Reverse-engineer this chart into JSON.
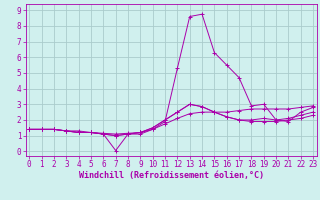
{
  "xlabel": "Windchill (Refroidissement éolien,°C)",
  "background_color": "#d0f0ee",
  "grid_color": "#aacccc",
  "line_color": "#aa00aa",
  "x_ticks": [
    0,
    1,
    2,
    3,
    4,
    5,
    6,
    7,
    8,
    9,
    10,
    11,
    12,
    13,
    14,
    15,
    16,
    17,
    18,
    19,
    20,
    21,
    22,
    23
  ],
  "y_ticks": [
    0,
    1,
    2,
    3,
    4,
    5,
    6,
    7,
    8,
    9
  ],
  "xlim": [
    -0.3,
    23.3
  ],
  "ylim": [
    -0.3,
    9.4
  ],
  "lines": [
    [
      1.4,
      1.4,
      1.4,
      1.3,
      1.3,
      1.2,
      1.15,
      1.1,
      1.15,
      1.2,
      1.4,
      1.75,
      2.1,
      2.4,
      2.5,
      2.5,
      2.5,
      2.6,
      2.7,
      2.7,
      2.7,
      2.7,
      2.8,
      2.9
    ],
    [
      1.4,
      1.4,
      1.4,
      1.3,
      1.2,
      1.2,
      1.1,
      1.0,
      1.1,
      1.2,
      1.5,
      2.0,
      2.5,
      3.0,
      2.85,
      2.5,
      2.2,
      2.0,
      1.9,
      1.9,
      1.9,
      2.0,
      2.1,
      2.3
    ],
    [
      1.4,
      1.4,
      1.4,
      1.3,
      1.2,
      1.2,
      1.1,
      0.05,
      1.1,
      1.1,
      1.4,
      1.9,
      5.3,
      8.6,
      8.75,
      6.3,
      5.5,
      4.7,
      2.9,
      3.0,
      2.0,
      1.9,
      2.5,
      2.8
    ],
    [
      1.4,
      1.4,
      1.4,
      1.3,
      1.2,
      1.2,
      1.1,
      1.0,
      1.1,
      1.2,
      1.5,
      2.0,
      2.5,
      3.0,
      2.85,
      2.5,
      2.2,
      2.0,
      2.0,
      2.1,
      2.0,
      2.1,
      2.3,
      2.5
    ]
  ],
  "tick_fontsize": 5.5,
  "xlabel_fontsize": 6.0
}
